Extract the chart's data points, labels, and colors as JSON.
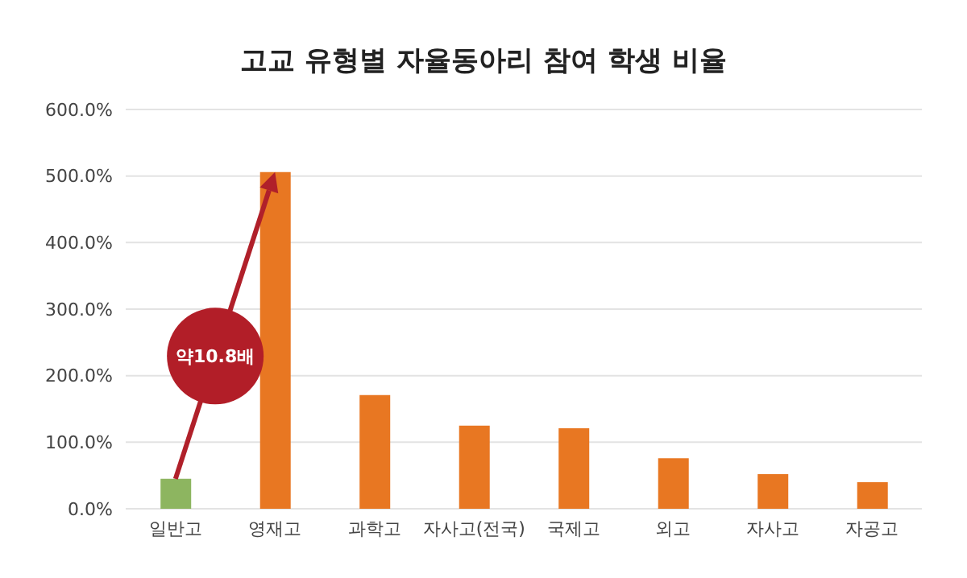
{
  "chart_data": {
    "type": "bar",
    "title": "고교 유형별 자율동아리 참여 학생 비율",
    "categories": [
      "일반고",
      "영재고",
      "과학고",
      "자사고(전국)",
      "국제고",
      "외고",
      "자사고",
      "자공고"
    ],
    "values": [
      45,
      506,
      171,
      125,
      121,
      76,
      52,
      40
    ],
    "colors": [
      "#8db560",
      "#e87722",
      "#e87722",
      "#e87722",
      "#e87722",
      "#e87722",
      "#e87722",
      "#e87722"
    ],
    "ylim": [
      0,
      600
    ],
    "yticks": [
      {
        "value": 0,
        "label": "0.0%"
      },
      {
        "value": 100,
        "label": "100.0%"
      },
      {
        "value": 200,
        "label": "200.0%"
      },
      {
        "value": 300,
        "label": "300.0%"
      },
      {
        "value": 400,
        "label": "400.0%"
      },
      {
        "value": 500,
        "label": "500.0%"
      },
      {
        "value": 600,
        "label": "600.0%"
      }
    ],
    "grid": "y",
    "annotations": [
      "약10.8배"
    ]
  }
}
